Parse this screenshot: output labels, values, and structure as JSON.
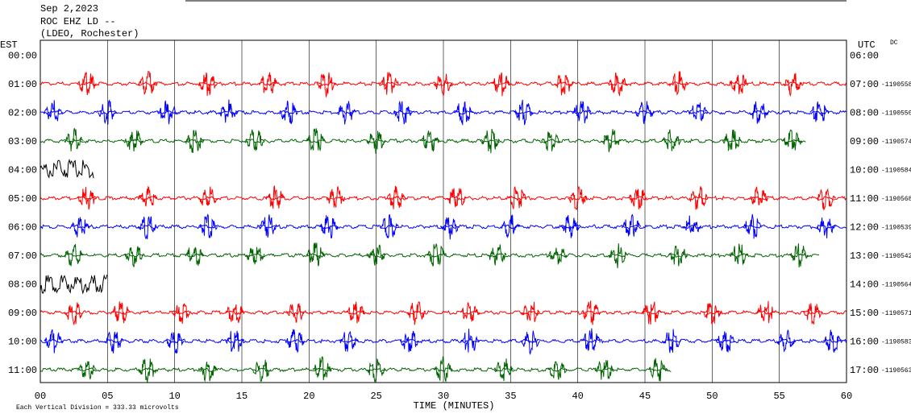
{
  "chart_data": {
    "type": "helicorder",
    "title_lines": [
      "Sep 2,2023",
      "ROC EHZ LD --",
      "(LDEO, Rochester)"
    ],
    "left_label": "EST",
    "right_label": "UTC",
    "corner_mark": "DC",
    "xlabel": "TIME (MINUTES)",
    "footer": "Each Vertical Division =  333.33 microvolts",
    "xlim": [
      0,
      60
    ],
    "xticks": [
      {
        "value": 0,
        "label": "00"
      },
      {
        "value": 5,
        "label": "05"
      },
      10,
      15,
      20,
      25,
      30,
      35,
      40,
      45,
      50,
      55,
      60
    ],
    "grid": true,
    "rows": [
      {
        "est": "00:00",
        "utc": "06:00"
      },
      {
        "est": "01:00",
        "utc": "07:00",
        "id": "-1190558",
        "color": "#ff0000",
        "end": 60,
        "bursts": [
          3.5,
          8,
          12.5,
          17,
          21.3,
          26,
          30,
          34.3,
          39,
          43,
          47.5,
          52,
          56
        ]
      },
      {
        "est": "02:00",
        "utc": "08:00",
        "id": "-1190550",
        "color": "#0000ff",
        "end": 60,
        "bursts": [
          1,
          5,
          9.5,
          14,
          18.5,
          22.8,
          27,
          31.5,
          36,
          40.3,
          45,
          49,
          53.5,
          58
        ]
      },
      {
        "est": "03:00",
        "utc": "09:00",
        "id": "-1190574",
        "color": "#006400",
        "end": 57,
        "bursts": [
          2.5,
          7,
          11.5,
          16,
          20.5,
          25,
          29,
          33.5,
          38,
          42.5,
          47,
          51.5,
          56
        ]
      },
      {
        "est": "04:00",
        "utc": "10:00",
        "id": "-1190584",
        "color": "#000000",
        "end": 4,
        "bursts": []
      },
      {
        "est": "05:00",
        "utc": "11:00",
        "id": "-1190568",
        "color": "#ff0000",
        "end": 60,
        "bursts": [
          3.5,
          8,
          12.5,
          17.5,
          22,
          26.5,
          31,
          35.5,
          40,
          44.5,
          49,
          53.5,
          58.5
        ]
      },
      {
        "est": "06:00",
        "utc": "12:00",
        "id": "-1190539",
        "color": "#0000ff",
        "end": 60,
        "bursts": [
          3,
          8,
          12.5,
          17,
          21.5,
          26,
          30.5,
          35,
          39.5,
          44,
          48.5,
          53,
          58.5
        ]
      },
      {
        "est": "07:00",
        "utc": "13:00",
        "id": "-1190542",
        "color": "#006400",
        "end": 58,
        "bursts": [
          2.5,
          7,
          11.5,
          16,
          20.5,
          25,
          29.5,
          34,
          38.5,
          43,
          47.5,
          52,
          56.5
        ]
      },
      {
        "est": "08:00",
        "utc": "14:00",
        "id": "-1190564",
        "color": "#000000",
        "end": 5,
        "bursts": []
      },
      {
        "est": "09:00",
        "utc": "15:00",
        "id": "-1190571",
        "color": "#ff0000",
        "end": 60,
        "bursts": [
          2.5,
          6,
          10.5,
          14.5,
          19,
          23.5,
          28,
          32,
          36.5,
          41,
          45.5,
          50,
          54,
          57.5
        ]
      },
      {
        "est": "10:00",
        "utc": "16:00",
        "id": "-1190583",
        "color": "#0000ff",
        "end": 60,
        "bursts": [
          1,
          5.5,
          10,
          14.5,
          19,
          23,
          27.5,
          32,
          36.5,
          41,
          47,
          51,
          55.5,
          59
        ]
      },
      {
        "est": "11:00",
        "utc": "17:00",
        "id": "-1190563",
        "color": "#006400",
        "end": 47,
        "bursts": [
          3.5,
          8,
          12.5,
          16.5,
          21,
          25,
          30,
          34.5,
          38.5,
          42,
          46
        ]
      }
    ]
  }
}
